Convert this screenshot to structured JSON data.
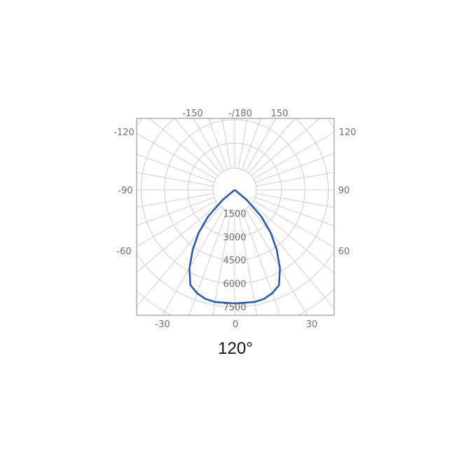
{
  "chart_data": {
    "type": "polar",
    "title": "120°",
    "angle_zero": "bottom",
    "angle_labels": [
      {
        "text": "-150",
        "angle": -150
      },
      {
        "text": "-/180",
        "angle": 180
      },
      {
        "text": "150",
        "angle": 150
      },
      {
        "text": "-120",
        "angle": -120
      },
      {
        "text": "120",
        "angle": 120
      },
      {
        "text": "-90",
        "angle": -90
      },
      {
        "text": "90",
        "angle": 90
      },
      {
        "text": "-60",
        "angle": -60
      },
      {
        "text": "60",
        "angle": 60
      },
      {
        "text": "-30",
        "angle": -30
      },
      {
        "text": "0",
        "angle": 0
      },
      {
        "text": "30",
        "angle": 30
      }
    ],
    "radial_ticks": [
      "1500",
      "3000",
      "4500",
      "6000",
      "7500"
    ],
    "radial_max": 7500,
    "angle_grid_step": 10,
    "grid": true,
    "series": [
      {
        "color": "#2a5caa",
        "angles": [
          -90,
          -55,
          -50,
          -45,
          -40,
          -35,
          -30,
          -25,
          -20,
          -15,
          -10,
          0,
          10,
          15,
          20,
          25,
          30,
          35,
          40,
          45,
          50,
          55,
          90
        ],
        "values": [
          0,
          0,
          1000,
          2400,
          3600,
          4700,
          5800,
          6730,
          7050,
          7240,
          7300,
          7280,
          7300,
          7240,
          7050,
          6730,
          5800,
          4700,
          3600,
          2400,
          1000,
          0,
          0
        ]
      }
    ]
  }
}
